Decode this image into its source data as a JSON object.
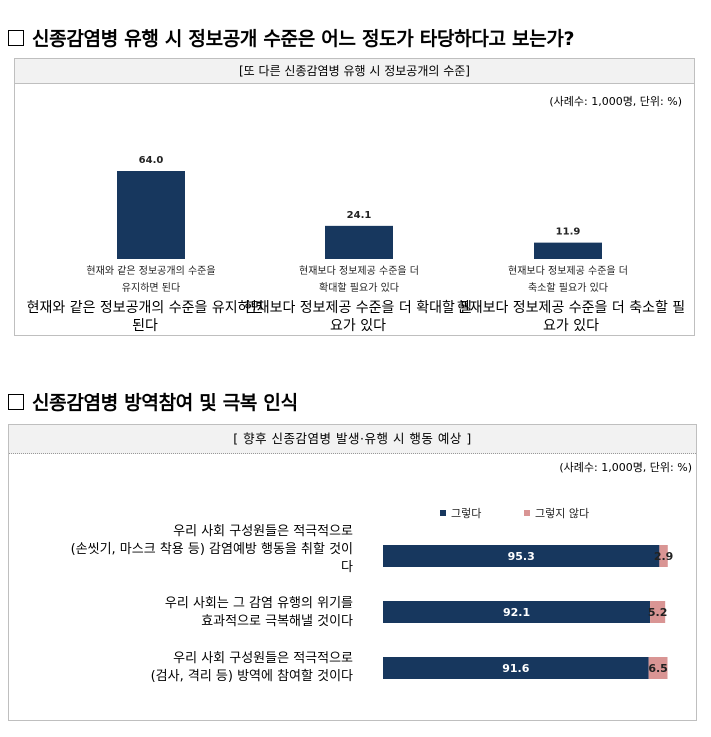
{
  "heading1": "신종감염병 유행 시 정보공개 수준은 어느 정도가 타당하다고 보는가?",
  "panel1": {
    "title": "[또 다른 신종감염병 유행 시 정보공개의 수준]",
    "unit": "(사례수: 1,000명, 단위: %)"
  },
  "heading2": "신종감염병 방역참여 및 극복 인식",
  "panel2": {
    "title": "[ 향후 신종감염병 발생·유행 시 행동 예상 ]",
    "unit": "(사례수: 1,000명, 단위: %)"
  },
  "captions": [
    "현재와 같은 정보공개의 수준을 유지하면 된다",
    "현재보다 정보제공 수준을 더 확대할 필요가 있다",
    "현재보다 정보제공 수준을 더 축소할 필요가 있다"
  ],
  "row_labels": [
    [
      "우리 사회 구성원들은 적극적으로",
      "(손씻기, 마스크 착용 등) 감염예방 행동을 취할 것이",
      "다"
    ],
    [
      "우리 사회는 그 감염 유행의 위기를",
      "효과적으로 극복해낼 것이다"
    ],
    [
      "우리 사회 구성원들은 적극적으로",
      "(검사, 격리 등) 방역에 참여할 것이다"
    ]
  ],
  "chart_data": [
    {
      "type": "bar",
      "categories": [
        [
          "현재와 같은 정보공개의 수준을",
          "유지하면 된다"
        ],
        [
          "현재보다 정보제공 수준을 더",
          "확대할 필요가 있다"
        ],
        [
          "현재보다 정보제공 수준을 더",
          "축소할 필요가 있다"
        ]
      ],
      "values": [
        64.0,
        24.1,
        11.9
      ],
      "value_labels": [
        "64.0",
        "24.1",
        "11.9"
      ],
      "ylim": [
        0,
        100
      ],
      "grid": false,
      "color": "#17375e"
    },
    {
      "type": "bar",
      "orientation": "horizontal",
      "stacked": true,
      "legend_position": "top",
      "grid": false,
      "xlim": [
        0,
        100
      ],
      "series": [
        {
          "name": "그렇다",
          "values": [
            95.3,
            92.1,
            91.6
          ],
          "color": "#17375e"
        },
        {
          "name": "그렇지 않다",
          "values": [
            2.9,
            5.2,
            6.5
          ],
          "color": "#d99594"
        }
      ]
    }
  ]
}
